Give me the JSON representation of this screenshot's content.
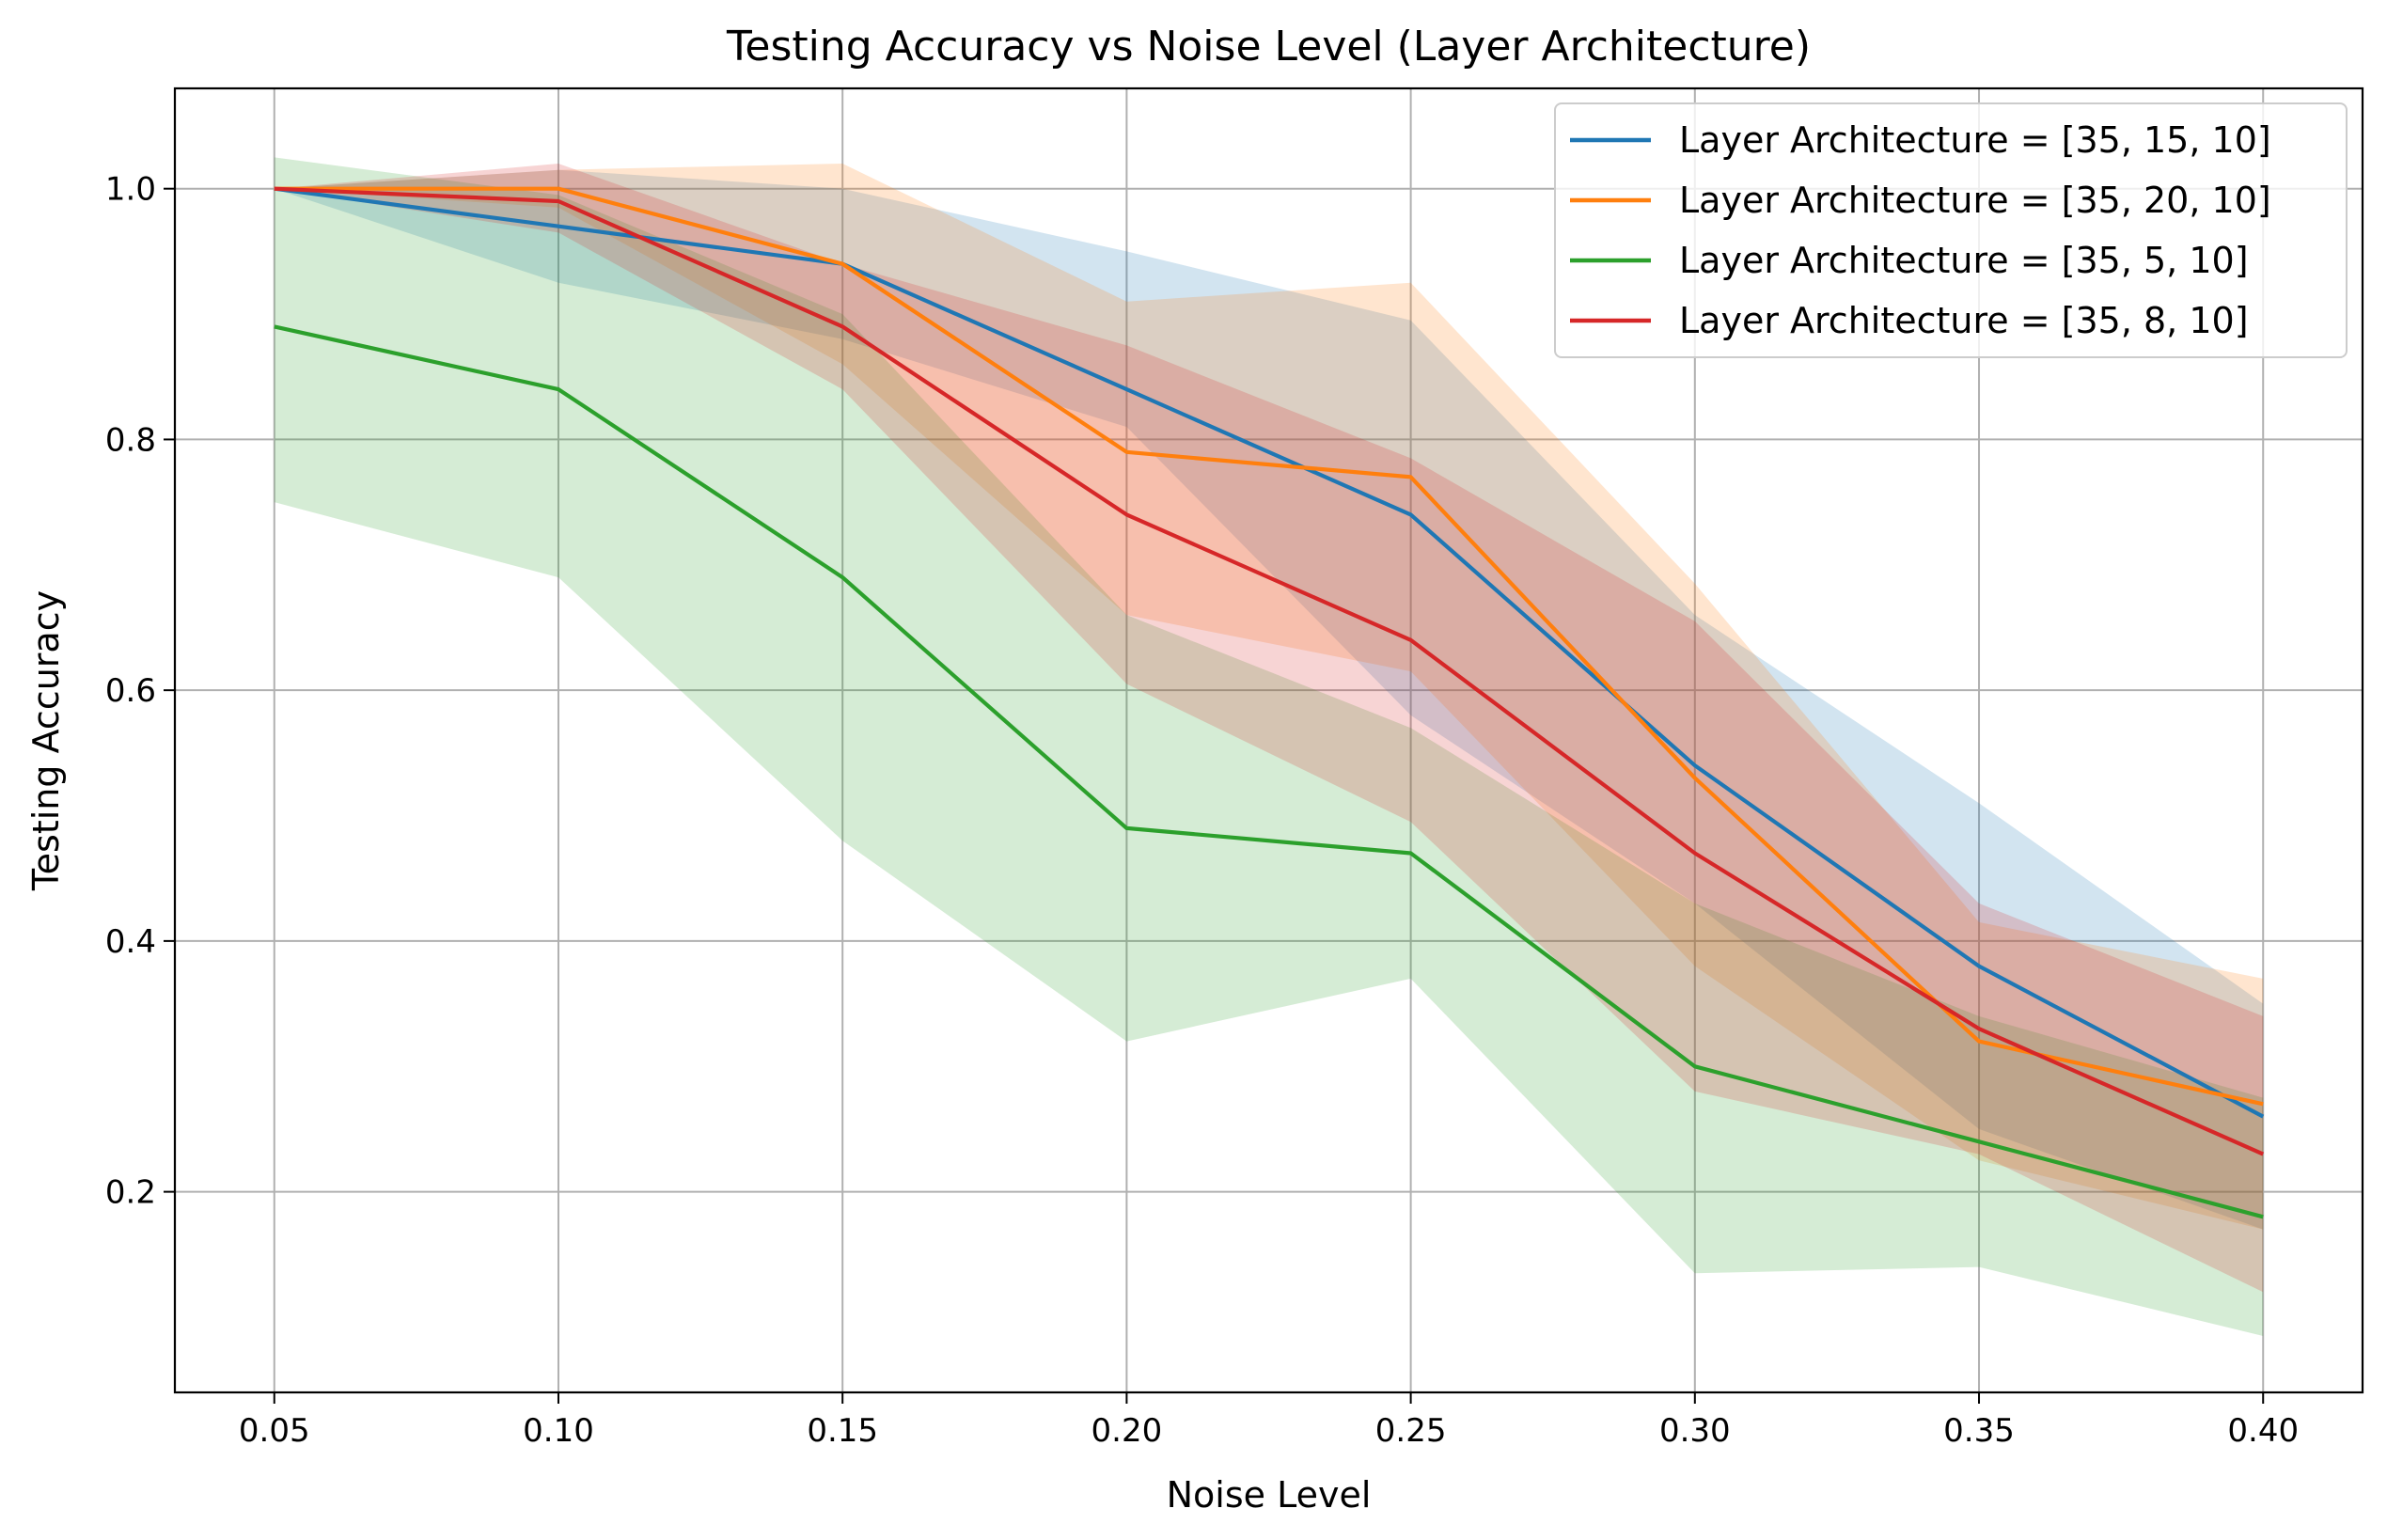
{
  "chart_data": {
    "type": "line",
    "title": "Testing Accuracy vs Noise Level (Layer Architecture)",
    "xlabel": "Noise Level",
    "ylabel": "Testing Accuracy",
    "x": [
      0.05,
      0.1,
      0.15,
      0.2,
      0.25,
      0.3,
      0.35,
      0.4
    ],
    "x_tick_labels": [
      "0.05",
      "0.10",
      "0.15",
      "0.20",
      "0.25",
      "0.30",
      "0.35",
      "0.40"
    ],
    "y_ticks": [
      0.2,
      0.4,
      0.6,
      0.8,
      1.0
    ],
    "y_tick_labels": [
      "0.2",
      "0.4",
      "0.6",
      "0.8",
      "1.0"
    ],
    "xlim": [
      0.0325,
      0.4175
    ],
    "ylim": [
      0.04,
      1.08
    ],
    "grid": true,
    "legend_position": "top-right",
    "series": [
      {
        "name": "Layer Architecture = [35, 15, 10]",
        "color": "#1f77b4",
        "values": [
          1.0,
          0.97,
          0.94,
          0.84,
          0.74,
          0.54,
          0.38,
          0.26
        ],
        "lower": [
          1.0,
          0.925,
          0.88,
          0.81,
          0.58,
          0.43,
          0.25,
          0.17
        ],
        "upper": [
          1.0,
          1.015,
          1.0,
          0.95,
          0.895,
          0.66,
          0.51,
          0.35
        ]
      },
      {
        "name": "Layer Architecture = [35, 20, 10]",
        "color": "#ff7f0e",
        "values": [
          1.0,
          1.0,
          0.94,
          0.79,
          0.77,
          0.53,
          0.32,
          0.27
        ],
        "lower": [
          1.0,
          0.985,
          0.86,
          0.66,
          0.615,
          0.38,
          0.225,
          0.17
        ],
        "upper": [
          1.0,
          1.015,
          1.02,
          0.91,
          0.925,
          0.685,
          0.415,
          0.37
        ]
      },
      {
        "name": "Layer Architecture = [35, 5, 10]",
        "color": "#2ca02c",
        "values": [
          0.89,
          0.84,
          0.69,
          0.49,
          0.47,
          0.3,
          0.24,
          0.18
        ],
        "lower": [
          0.75,
          0.69,
          0.48,
          0.32,
          0.37,
          0.135,
          0.14,
          0.085
        ],
        "upper": [
          1.025,
          0.995,
          0.9,
          0.66,
          0.57,
          0.43,
          0.34,
          0.275
        ]
      },
      {
        "name": "Layer Architecture = [35, 8, 10]",
        "color": "#d62728",
        "values": [
          1.0,
          0.99,
          0.89,
          0.74,
          0.64,
          0.47,
          0.33,
          0.23
        ],
        "lower": [
          1.0,
          0.965,
          0.84,
          0.605,
          0.495,
          0.28,
          0.23,
          0.12
        ],
        "upper": [
          1.0,
          1.02,
          0.94,
          0.875,
          0.785,
          0.655,
          0.43,
          0.34
        ]
      }
    ]
  }
}
